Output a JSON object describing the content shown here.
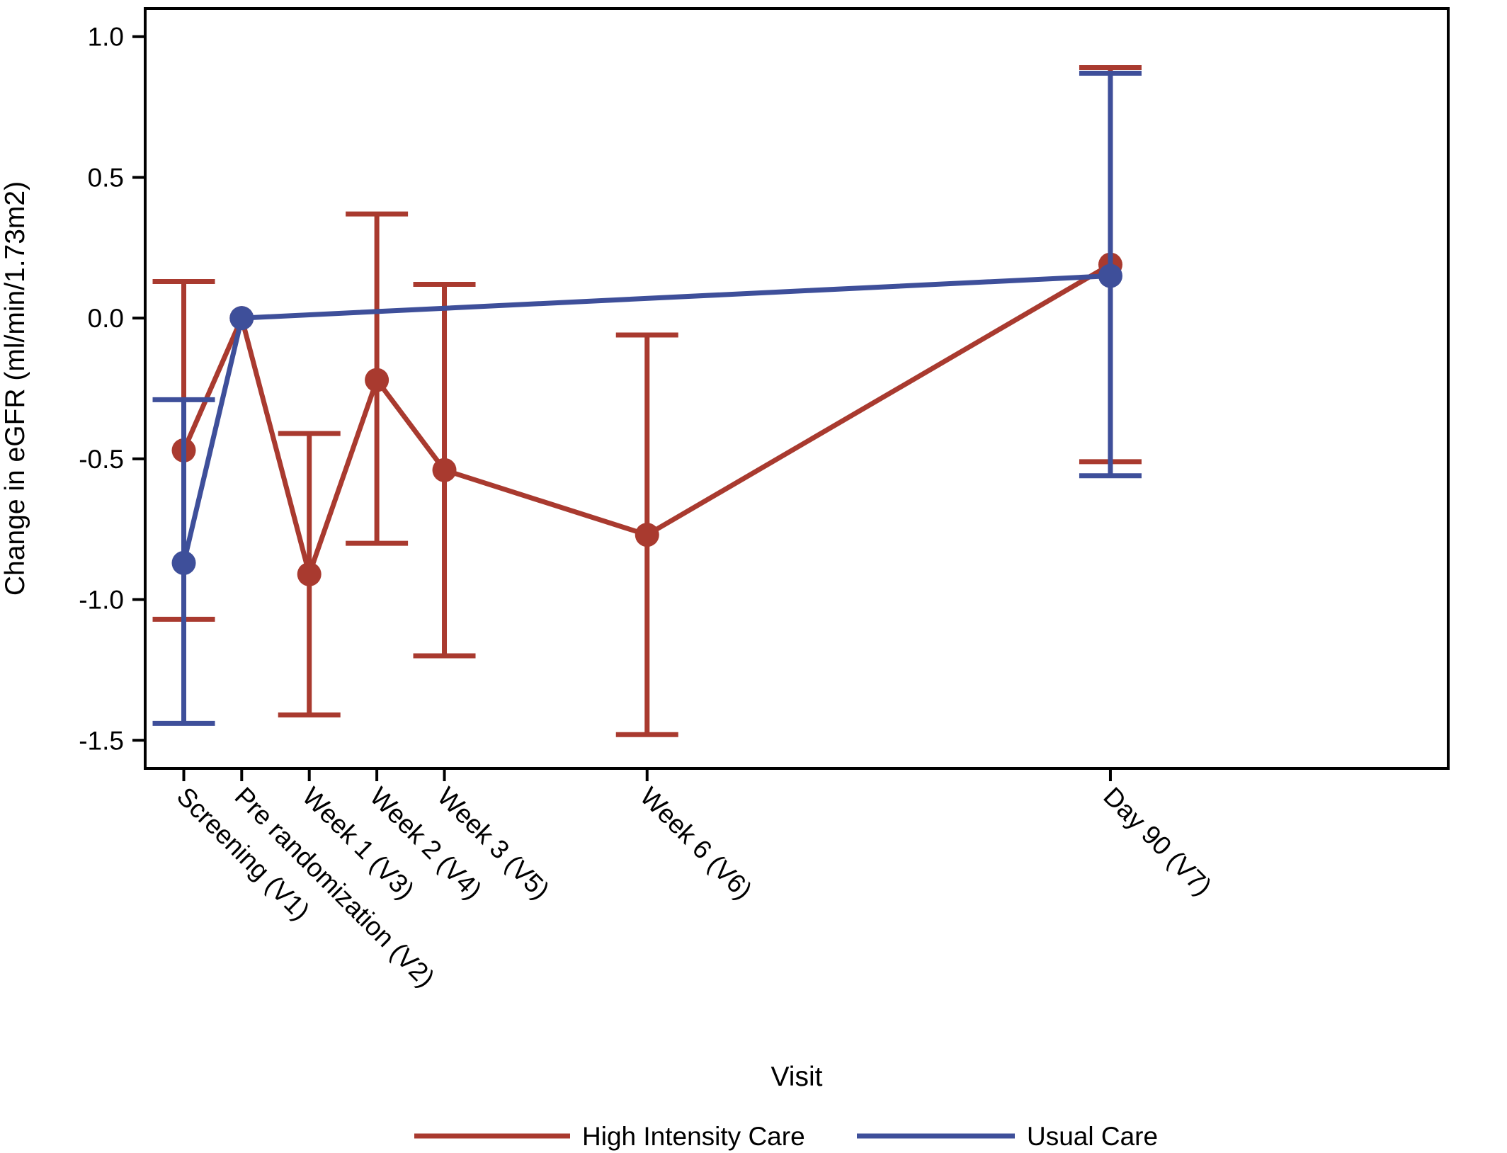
{
  "chart_data": {
    "type": "line",
    "title": "",
    "xlabel": "Visit",
    "ylabel": "Change in eGFR (ml/min/1.73m2)",
    "ylim": [
      -1.6,
      1.1
    ],
    "yticks": [
      1.0,
      0.5,
      0.0,
      -0.5,
      -1.0,
      -1.5
    ],
    "ytick_labels": [
      "1.0",
      "0.5",
      "0.0",
      "-0.5",
      "-1.0",
      "-1.5"
    ],
    "grid": false,
    "legend_position": "bottom",
    "x_axis": {
      "scale": "days from pre-randomization",
      "range": [
        -10,
        125
      ]
    },
    "visits": [
      {
        "label": "Screening (V1)",
        "x": -6
      },
      {
        "label": "Pre randomization (V2)",
        "x": 0
      },
      {
        "label": "Week 1 (V3)",
        "x": 7
      },
      {
        "label": "Week 2 (V4)",
        "x": 14
      },
      {
        "label": "Week 3 (V5)",
        "x": 21
      },
      {
        "label": "Week 6 (V6)",
        "x": 42
      },
      {
        "label": "Day 90 (V7)",
        "x": 90
      }
    ],
    "series": [
      {
        "name": "High Intensity Care",
        "color": "#A93A2F",
        "points": [
          {
            "visit": "Screening (V1)",
            "mean": -0.47,
            "lower": -1.07,
            "upper": 0.13
          },
          {
            "visit": "Pre randomization (V2)",
            "mean": 0.0,
            "lower": null,
            "upper": null
          },
          {
            "visit": "Week 1 (V3)",
            "mean": -0.91,
            "lower": -1.41,
            "upper": -0.41
          },
          {
            "visit": "Week 2 (V4)",
            "mean": -0.22,
            "lower": -0.8,
            "upper": 0.37
          },
          {
            "visit": "Week 3 (V5)",
            "mean": -0.54,
            "lower": -1.2,
            "upper": 0.12
          },
          {
            "visit": "Week 6 (V6)",
            "mean": -0.77,
            "lower": -1.48,
            "upper": -0.06
          },
          {
            "visit": "Day 90 (V7)",
            "mean": 0.19,
            "lower": -0.51,
            "upper": 0.89
          }
        ]
      },
      {
        "name": "Usual Care",
        "color": "#3E4F9A",
        "points": [
          {
            "visit": "Screening (V1)",
            "mean": -0.87,
            "lower": -1.44,
            "upper": -0.29
          },
          {
            "visit": "Pre randomization (V2)",
            "mean": 0.0,
            "lower": null,
            "upper": null
          },
          {
            "visit": "Day 90 (V7)",
            "mean": 0.15,
            "lower": -0.56,
            "upper": 0.87
          }
        ]
      }
    ]
  }
}
